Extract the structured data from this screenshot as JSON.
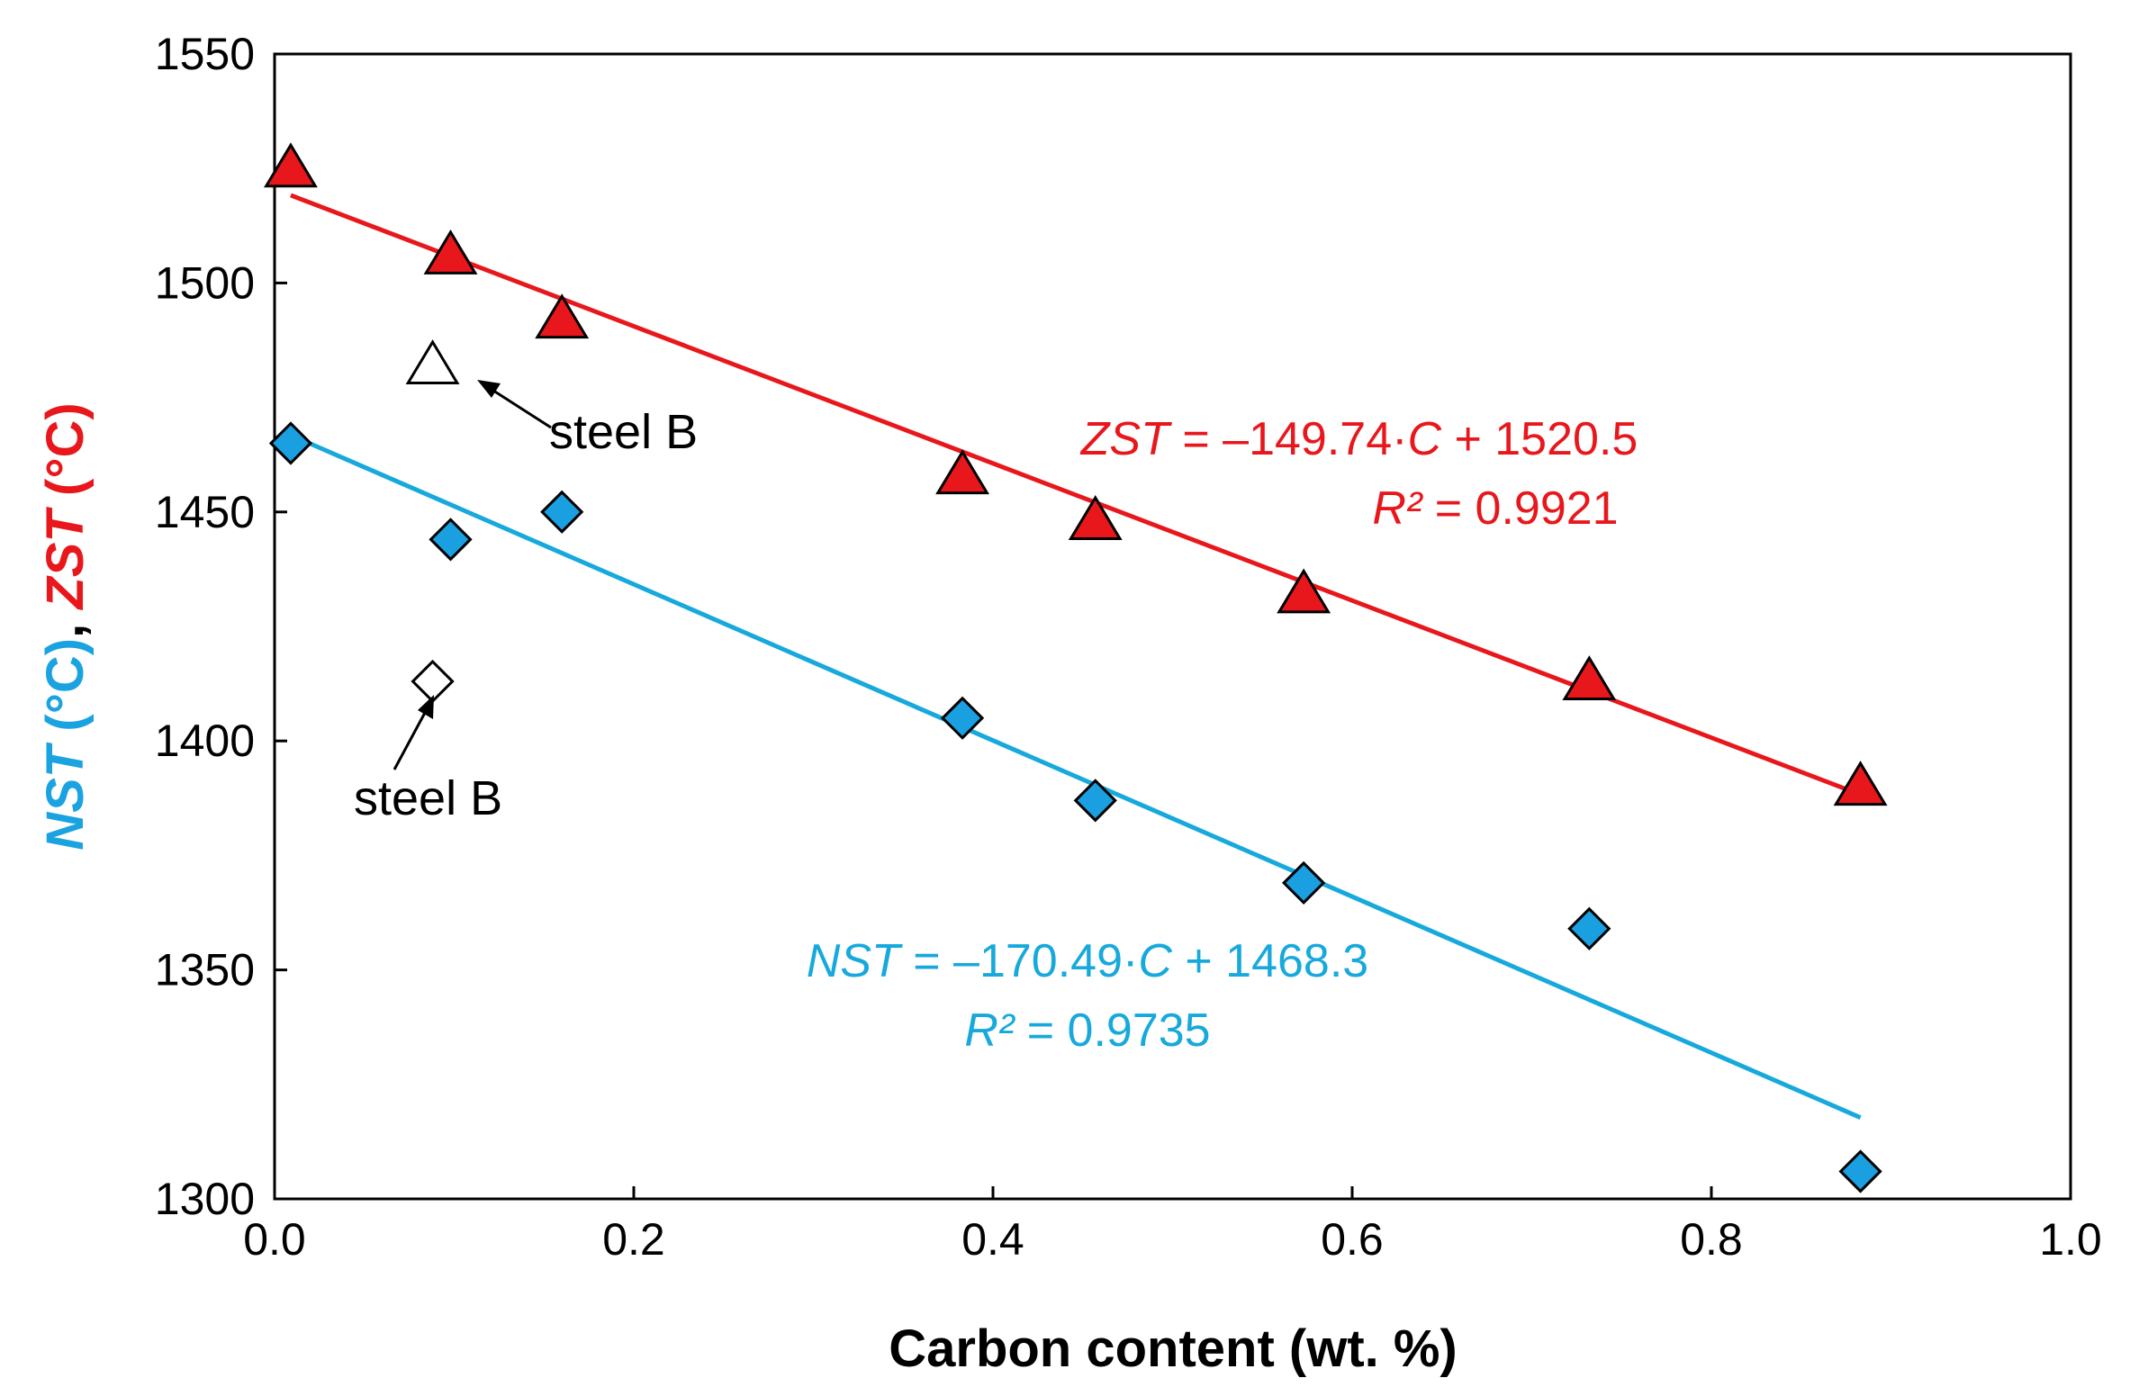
{
  "chart_data": {
    "type": "scatter",
    "title": "",
    "xlabel": "Carbon content (wt. %)",
    "ylabel": {
      "part1": "NST (°C)",
      "part1_var": "NST",
      "part1_unit": " (°C)",
      "separator": ", ",
      "part2_var": "ZST",
      "part2_unit": " (°C)"
    },
    "xlim": [
      0.0,
      1.0
    ],
    "ylim": [
      1300,
      1550
    ],
    "x_ticks": [
      "0.0",
      "0.2",
      "0.4",
      "0.6",
      "0.8",
      "1.0"
    ],
    "x_tick_values": [
      0.0,
      0.2,
      0.4,
      0.6,
      0.8,
      1.0
    ],
    "y_ticks": [
      "1300",
      "1350",
      "1400",
      "1450",
      "1500",
      "1550"
    ],
    "y_tick_values": [
      1300,
      1350,
      1400,
      1450,
      1500,
      1550
    ],
    "grid": false,
    "series": [
      {
        "name": "ZST",
        "marker": "triangle",
        "color": "#e8171c",
        "x": [
          0.009,
          0.098,
          0.16,
          0.383,
          0.457,
          0.573,
          0.732,
          0.883
        ],
        "y": [
          1525,
          1506,
          1492,
          1458,
          1448,
          1432,
          1413,
          1390
        ]
      },
      {
        "name": "NST",
        "marker": "diamond",
        "color": "#1a9fe0",
        "x": [
          0.009,
          0.098,
          0.16,
          0.383,
          0.457,
          0.573,
          0.732,
          0.883
        ],
        "y": [
          1465,
          1444,
          1450,
          1405,
          1387,
          1369,
          1359,
          1306
        ]
      }
    ],
    "outliers": [
      {
        "series": "ZST",
        "marker": "triangle",
        "x": 0.088,
        "y": 1482,
        "label": "steel B"
      },
      {
        "series": "NST",
        "marker": "diamond",
        "x": 0.088,
        "y": 1413,
        "label": "steel B"
      }
    ],
    "trendlines": [
      {
        "series": "ZST",
        "color": "#e8171c",
        "slope": -149.74,
        "intercept": 1520.5,
        "x_range": [
          0.009,
          0.883
        ],
        "equation": {
          "var": "ZST",
          "rest1": " = –149.74·",
          "cvar": "C",
          "rest2": " + 1520.5"
        },
        "r2": {
          "var": "R²",
          "rest": " = 0.9921"
        }
      },
      {
        "series": "NST",
        "color": "#17a9dc",
        "slope": -170.49,
        "intercept": 1468.3,
        "x_range": [
          0.009,
          0.883
        ],
        "equation": {
          "var": "NST",
          "rest1": " = –170.49·",
          "cvar": "C",
          "rest2": " + 1468.3"
        },
        "r2": {
          "var": "R²",
          "rest": " = 0.9735"
        }
      }
    ],
    "colors": {
      "nst_label": "#1aa3e0",
      "zst_label": "#e8171c",
      "zst_eq": "#e8171c",
      "nst_eq": "#17a9dc"
    }
  }
}
